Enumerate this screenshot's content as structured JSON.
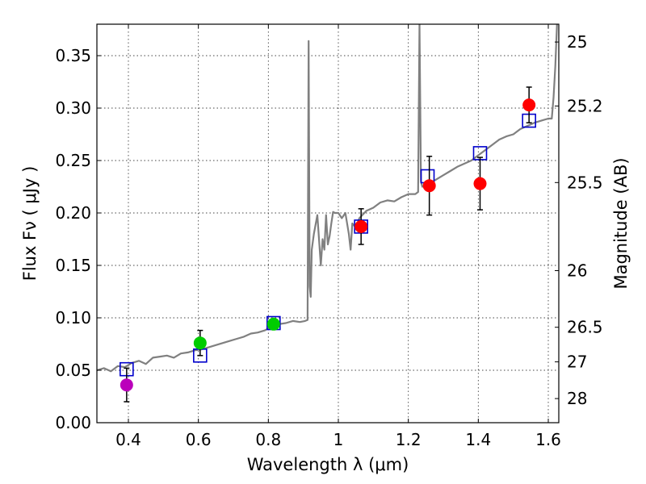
{
  "chart_data": {
    "type": "scatter",
    "title": "",
    "xlabel": "Wavelength  λ (μm)",
    "ylabel": "Flux  Fν  ( μJy )",
    "ylabel_right": "Magnitude (AB)",
    "xlim": [
      0.31,
      1.63
    ],
    "ylim": [
      0.0,
      0.38
    ],
    "grid": true,
    "x_ticks": [
      0.4,
      0.6,
      0.8,
      1.0,
      1.2,
      1.4,
      1.6
    ],
    "x_tick_labels": [
      "0.4",
      "0.6",
      "0.8",
      "1",
      "1.2",
      "1.4",
      "1.6"
    ],
    "y_ticks": [
      0.0,
      0.05,
      0.1,
      0.15,
      0.2,
      0.25,
      0.3,
      0.35
    ],
    "y_tick_labels": [
      "0.00",
      "0.05",
      "0.10",
      "0.15",
      "0.20",
      "0.25",
      "0.30",
      "0.35"
    ],
    "right_ticks": [
      {
        "label": "25",
        "flux": 0.363
      },
      {
        "label": "25.2",
        "flux": 0.302
      },
      {
        "label": "25.5",
        "flux": 0.229
      },
      {
        "label": "26",
        "flux": 0.145
      },
      {
        "label": "26.5",
        "flux": 0.091
      },
      {
        "label": "27",
        "flux": 0.058
      },
      {
        "label": "28",
        "flux": 0.023
      }
    ],
    "series": [
      {
        "name": "model spectrum",
        "kind": "line",
        "color": "#808080",
        "x": [
          0.31,
          0.33,
          0.35,
          0.37,
          0.39,
          0.41,
          0.43,
          0.45,
          0.47,
          0.49,
          0.51,
          0.53,
          0.55,
          0.57,
          0.59,
          0.61,
          0.63,
          0.65,
          0.67,
          0.69,
          0.71,
          0.73,
          0.75,
          0.77,
          0.79,
          0.81,
          0.83,
          0.85,
          0.87,
          0.89,
          0.905,
          0.912,
          0.915,
          0.918,
          0.921,
          0.924,
          0.93,
          0.94,
          0.95,
          0.955,
          0.96,
          0.965,
          0.97,
          0.975,
          0.98,
          0.985,
          0.99,
          1.0,
          1.01,
          1.02,
          1.03,
          1.035,
          1.04,
          1.05,
          1.06,
          1.08,
          1.1,
          1.12,
          1.14,
          1.16,
          1.18,
          1.2,
          1.22,
          1.228,
          1.232,
          1.236,
          1.24,
          1.26,
          1.28,
          1.3,
          1.32,
          1.34,
          1.36,
          1.38,
          1.4,
          1.42,
          1.44,
          1.46,
          1.48,
          1.5,
          1.52,
          1.54,
          1.56,
          1.58,
          1.6,
          1.61,
          1.615,
          1.62,
          1.625
        ],
        "y": [
          0.05,
          0.052,
          0.049,
          0.054,
          0.053,
          0.057,
          0.059,
          0.056,
          0.062,
          0.063,
          0.064,
          0.062,
          0.066,
          0.067,
          0.069,
          0.07,
          0.072,
          0.074,
          0.076,
          0.078,
          0.08,
          0.082,
          0.085,
          0.086,
          0.088,
          0.092,
          0.094,
          0.095,
          0.097,
          0.096,
          0.097,
          0.098,
          0.364,
          0.13,
          0.12,
          0.165,
          0.18,
          0.198,
          0.15,
          0.175,
          0.165,
          0.198,
          0.17,
          0.178,
          0.19,
          0.201,
          0.2,
          0.2,
          0.195,
          0.2,
          0.18,
          0.165,
          0.19,
          0.186,
          0.195,
          0.202,
          0.205,
          0.21,
          0.212,
          0.211,
          0.215,
          0.218,
          0.218,
          0.22,
          0.38,
          0.23,
          0.225,
          0.228,
          0.232,
          0.236,
          0.24,
          0.244,
          0.247,
          0.25,
          0.255,
          0.26,
          0.265,
          0.27,
          0.273,
          0.275,
          0.28,
          0.283,
          0.286,
          0.288,
          0.29,
          0.29,
          0.31,
          0.34,
          0.38
        ]
      },
      {
        "name": "model photometry",
        "kind": "square",
        "color": "#0000cc",
        "x": [
          0.395,
          0.605,
          0.815,
          1.065,
          1.255,
          1.405,
          1.545
        ],
        "y": [
          0.051,
          0.064,
          0.095,
          0.187,
          0.235,
          0.257,
          0.288
        ]
      },
      {
        "name": "observed photometry",
        "kind": "point",
        "points": [
          {
            "x": 0.395,
            "y": 0.036,
            "err": 0.016,
            "color": "#bb00bb"
          },
          {
            "x": 0.605,
            "y": 0.076,
            "err": 0.012,
            "color": "#00cc00"
          },
          {
            "x": 0.815,
            "y": 0.094,
            "err": 0.005,
            "color": "#00cc00"
          },
          {
            "x": 1.065,
            "y": 0.187,
            "err": 0.017,
            "color": "#ff0000"
          },
          {
            "x": 1.26,
            "y": 0.226,
            "err": 0.028,
            "color": "#ff0000"
          },
          {
            "x": 1.405,
            "y": 0.228,
            "err": 0.025,
            "color": "#ff0000"
          },
          {
            "x": 1.545,
            "y": 0.303,
            "err": 0.017,
            "color": "#ff0000"
          }
        ]
      }
    ]
  }
}
